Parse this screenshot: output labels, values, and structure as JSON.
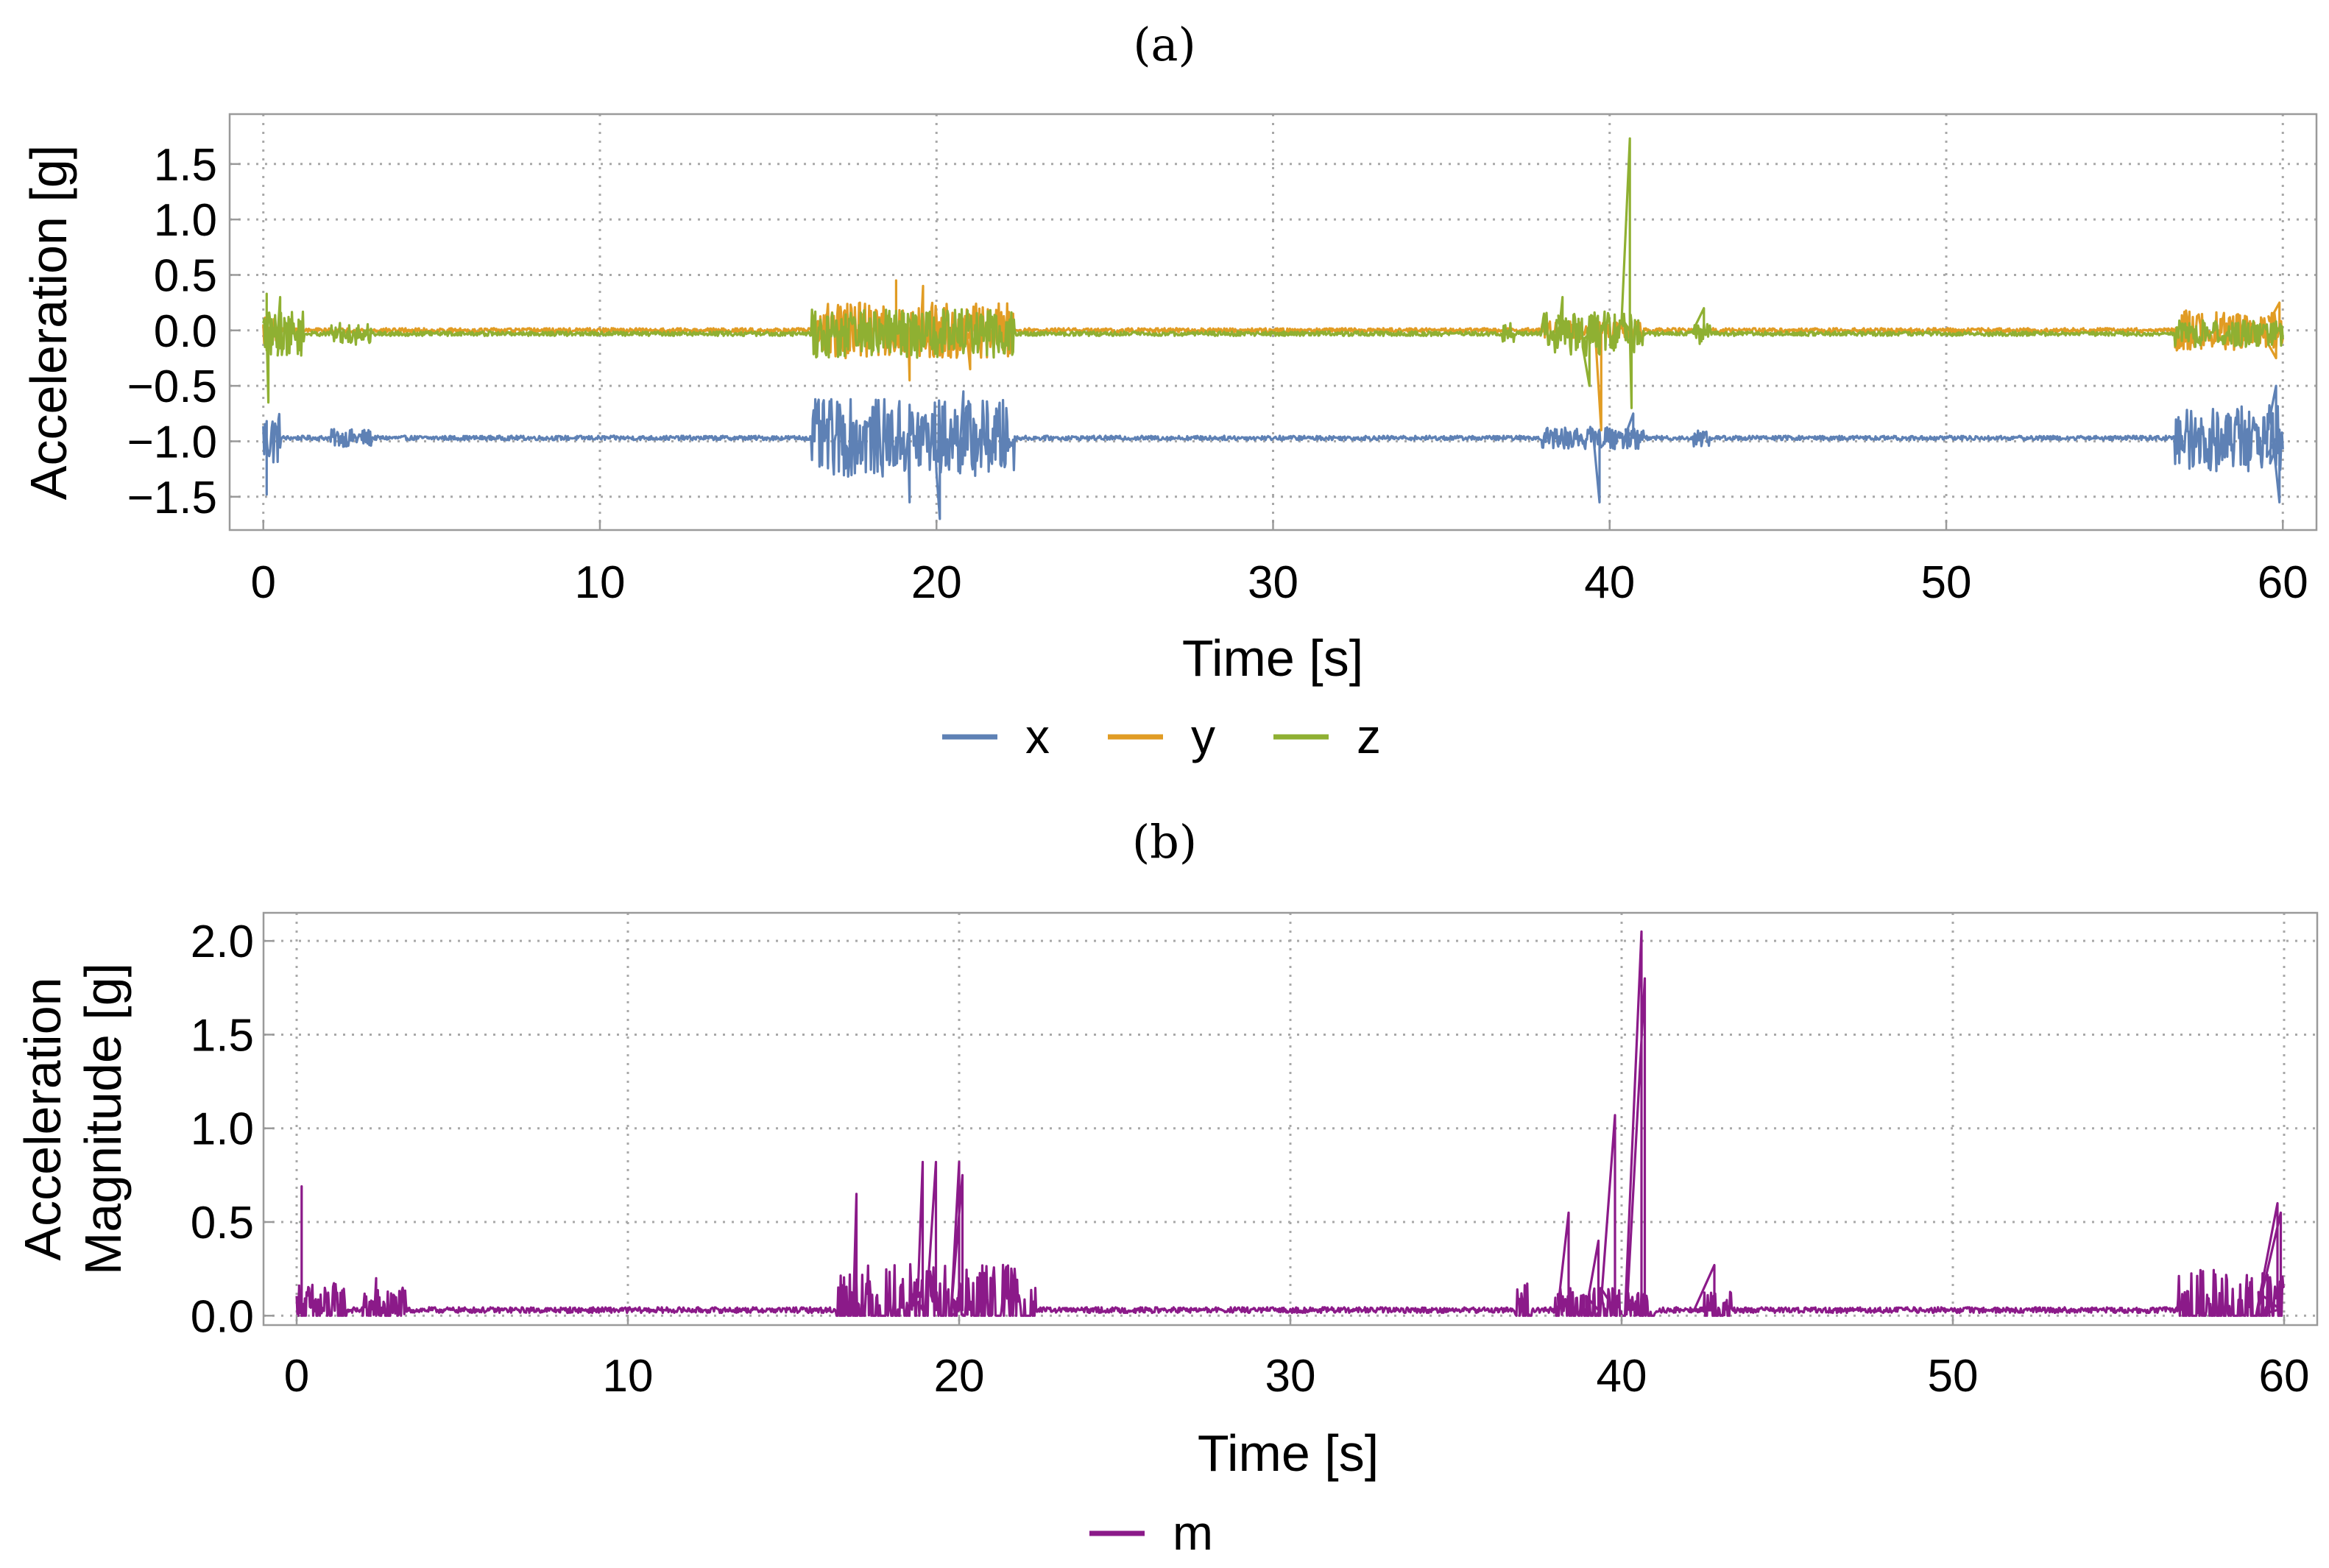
{
  "chart_data": [
    {
      "type": "line",
      "panel_label": "(a)",
      "title": "",
      "xlabel": "Time [s]",
      "ylabel": "Acceleration [g]",
      "xlim": [
        -1,
        61
      ],
      "ylim": [
        -1.8,
        1.95
      ],
      "xticks": [
        0,
        10,
        20,
        30,
        40,
        50,
        60
      ],
      "yticks": [
        -1.5,
        -1.0,
        -0.5,
        0.0,
        0.5,
        1.0,
        1.5
      ],
      "ytick_labels": [
        "−1.5",
        "−1.0",
        "−0.5",
        "0.0",
        "0.5",
        "1.0",
        "1.5"
      ],
      "grid": true,
      "legend_position": "bottom-center",
      "series": [
        {
          "name": "x",
          "color": "#5e81b5",
          "baseline": -0.97,
          "noise": 0.02,
          "bursts": [
            [
              0,
              0.5,
              0.25
            ],
            [
              2,
              3.2,
              0.08
            ],
            [
              16.3,
              22.3,
              0.35
            ],
            [
              38,
              41,
              0.1
            ],
            [
              42.5,
              43,
              0.08
            ],
            [
              56.8,
              60,
              0.3
            ]
          ],
          "spikes": [
            [
              0.1,
              -1.48
            ],
            [
              19.2,
              -1.55
            ],
            [
              20.1,
              -1.7
            ],
            [
              20.8,
              -0.55
            ],
            [
              39.7,
              -1.55
            ],
            [
              40.7,
              -0.75
            ],
            [
              59.9,
              -1.55
            ],
            [
              59.8,
              -0.5
            ]
          ]
        },
        {
          "name": "y",
          "color": "#e19c24",
          "baseline": 0.0,
          "noise": 0.02,
          "bursts": [
            [
              0,
              0.5,
              0.12
            ],
            [
              16.3,
              22.3,
              0.25
            ],
            [
              38,
              41,
              0.08
            ],
            [
              56.8,
              60,
              0.18
            ]
          ],
          "spikes": [
            [
              18.8,
              0.45
            ],
            [
              19.2,
              -0.45
            ],
            [
              19.6,
              0.4
            ],
            [
              21.0,
              -0.35
            ],
            [
              39.75,
              -0.9
            ],
            [
              59.8,
              -0.25
            ],
            [
              59.9,
              0.25
            ]
          ]
        },
        {
          "name": "z",
          "color": "#8fb032",
          "baseline": -0.03,
          "noise": 0.02,
          "bursts": [
            [
              0,
              1.2,
              0.2
            ],
            [
              2,
              3.2,
              0.1
            ],
            [
              16.3,
              22.3,
              0.22
            ],
            [
              36.8,
              37.2,
              0.1
            ],
            [
              38,
              41,
              0.2
            ],
            [
              42.5,
              43,
              0.1
            ],
            [
              56.8,
              60,
              0.12
            ]
          ],
          "spikes": [
            [
              0.1,
              0.33
            ],
            [
              0.15,
              -0.65
            ],
            [
              0.5,
              0.3
            ],
            [
              38.6,
              0.3
            ],
            [
              39.4,
              -0.5
            ],
            [
              40.6,
              1.73
            ],
            [
              40.65,
              -0.7
            ],
            [
              42.8,
              0.2
            ]
          ]
        }
      ]
    },
    {
      "type": "line",
      "panel_label": "(b)",
      "title": "",
      "xlabel": "Time [s]",
      "ylabel": [
        "Acceleration",
        "Magnitude [g]"
      ],
      "xlim": [
        -1,
        61
      ],
      "ylim": [
        -0.05,
        2.15
      ],
      "xticks": [
        0,
        10,
        20,
        30,
        40,
        50,
        60
      ],
      "yticks": [
        0.0,
        0.5,
        1.0,
        1.5,
        2.0
      ],
      "ytick_labels": [
        "0.0",
        "0.5",
        "1.0",
        "1.5",
        "2.0"
      ],
      "grid": true,
      "legend_position": "bottom-center",
      "series": [
        {
          "name": "m",
          "color": "#8b1a89",
          "baseline": 0.03,
          "noise": 0.015,
          "bursts": [
            [
              0,
              1.5,
              0.15
            ],
            [
              2,
              3.3,
              0.12
            ],
            [
              16.3,
              22.3,
              0.25
            ],
            [
              36.8,
              37.3,
              0.15
            ],
            [
              38,
              41,
              0.12
            ],
            [
              42.5,
              43.3,
              0.1
            ],
            [
              56.8,
              60,
              0.22
            ]
          ],
          "spikes": [
            [
              0.15,
              0.69
            ],
            [
              2.4,
              0.2
            ],
            [
              16.9,
              0.65
            ],
            [
              18.9,
              0.82
            ],
            [
              19.3,
              0.82
            ],
            [
              20.0,
              0.82
            ],
            [
              20.1,
              0.75
            ],
            [
              38.4,
              0.55
            ],
            [
              39.3,
              0.4
            ],
            [
              39.8,
              1.07
            ],
            [
              40.6,
              2.05
            ],
            [
              40.7,
              1.8
            ],
            [
              42.8,
              0.27
            ],
            [
              59.8,
              0.6
            ],
            [
              59.9,
              0.55
            ]
          ]
        }
      ]
    }
  ]
}
